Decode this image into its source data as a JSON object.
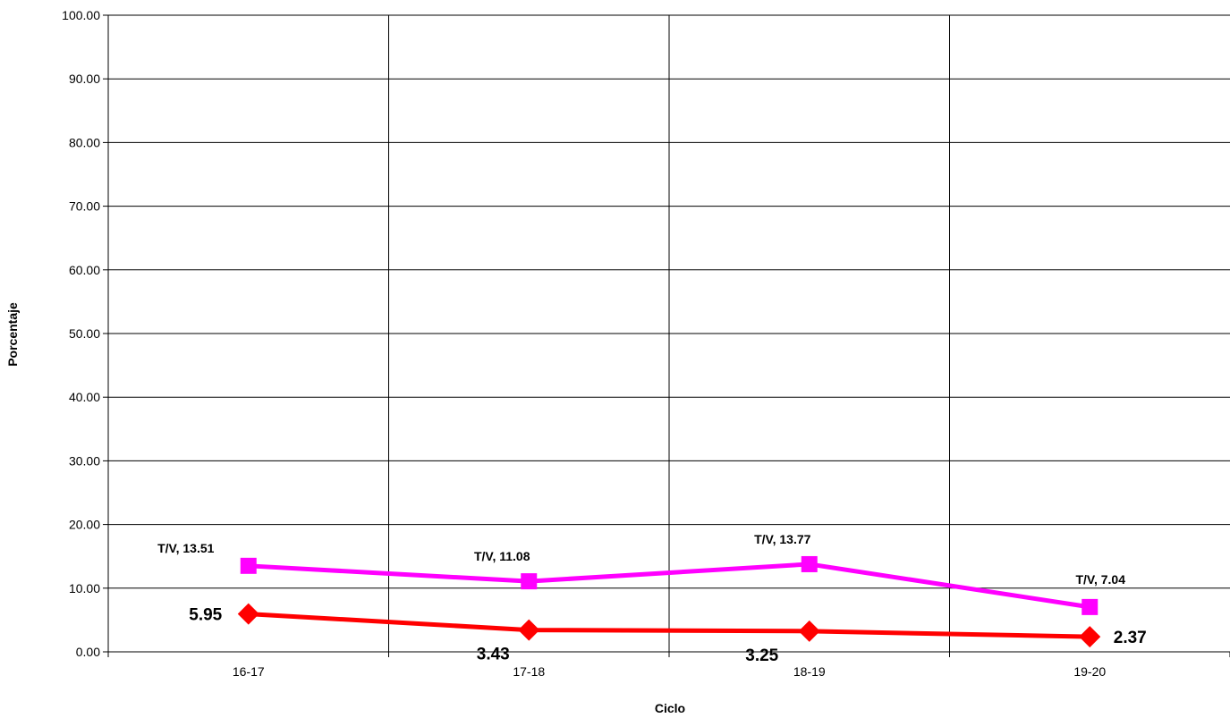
{
  "chart_data": {
    "type": "line",
    "xlabel": "Ciclo",
    "ylabel": "Porcentaje",
    "categories": [
      "16-17",
      "17-18",
      "18-19",
      "19-20"
    ],
    "ylim": [
      0,
      100
    ],
    "yticks": [
      "0.00",
      "10.00",
      "20.00",
      "30.00",
      "40.00",
      "50.00",
      "60.00",
      "70.00",
      "80.00",
      "90.00",
      "100.00"
    ],
    "grid": true,
    "series": [
      {
        "name": "T/V",
        "color": "#ff00ff",
        "marker": "square",
        "values": [
          13.51,
          11.08,
          13.77,
          7.04
        ],
        "labels": [
          "T/V, 13.51",
          "T/V, 11.08",
          "T/V, 13.77",
          "T/V, 7.04"
        ]
      },
      {
        "color": "#ff0000",
        "marker": "diamond",
        "values": [
          5.95,
          3.43,
          3.25,
          2.37
        ],
        "labels": [
          "5.95",
          "3.43",
          "3.25",
          "2.37"
        ]
      }
    ]
  }
}
